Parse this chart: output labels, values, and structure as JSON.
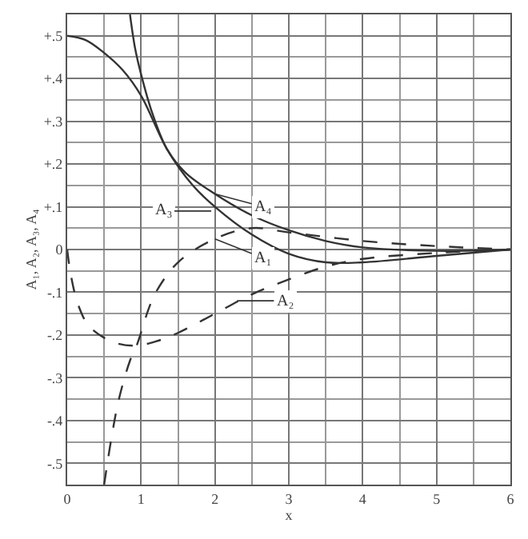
{
  "chart_data": {
    "type": "line",
    "xlabel": "x",
    "ylabel": "A₁, A₂, A₃, A₄",
    "xlim": [
      0,
      6
    ],
    "xticks": [
      0,
      1,
      2,
      3,
      4,
      5,
      6
    ],
    "ylim": [
      -0.55,
      0.55
    ],
    "yticks": [
      {
        "value": 0.5,
        "label": "+.5"
      },
      {
        "value": 0.4,
        "label": "+.4"
      },
      {
        "value": 0.3,
        "label": "+.3"
      },
      {
        "value": 0.2,
        "label": "+.2"
      },
      {
        "value": 0.1,
        "label": "+.1"
      },
      0,
      {
        "value": -0.1,
        "label": "-.1"
      },
      {
        "value": -0.2,
        "label": "-.2"
      },
      {
        "value": -0.3,
        "label": "-.3"
      },
      {
        "value": -0.4,
        "label": "-.4"
      },
      {
        "value": -0.5,
        "label": "-.5"
      }
    ],
    "grid": true,
    "series": [
      {
        "color": "#333333",
        "line_style": "solid",
        "x": [
          0.85,
          0.92,
          1.0,
          1.15,
          1.35,
          1.6,
          2.0,
          2.5,
          3.0,
          3.5,
          4.0,
          5.0,
          6.0
        ],
        "values": [
          0.55,
          0.47,
          0.41,
          0.32,
          0.235,
          0.18,
          0.13,
          0.08,
          0.045,
          0.02,
          0.005,
          -0.003,
          0
        ]
      },
      {
        "color": "#333333",
        "line_style": "solid",
        "x": [
          0,
          0.25,
          0.5,
          0.75,
          1.0,
          1.35,
          1.7,
          2.0,
          2.5,
          3.0,
          3.5,
          4.0,
          5.0,
          6.0
        ],
        "values": [
          0.5,
          0.49,
          0.46,
          0.42,
          0.36,
          0.235,
          0.15,
          0.1,
          0.035,
          -0.01,
          -0.03,
          -0.03,
          -0.015,
          0
        ]
      },
      {
        "color": "#333333",
        "line_style": "dashed",
        "x": [
          0.5,
          0.6,
          0.7,
          0.85,
          0.95,
          1.1,
          1.2,
          1.5,
          2.0,
          2.5,
          3.0,
          4.0,
          5.0,
          6.0
        ],
        "values": [
          -0.55,
          -0.44,
          -0.35,
          -0.26,
          -0.22,
          -0.14,
          -0.1,
          -0.03,
          0.025,
          0.05,
          0.04,
          0.02,
          0.008,
          0
        ]
      },
      {
        "color": "#333333",
        "line_style": "dashed",
        "x": [
          0,
          0.05,
          0.15,
          0.3,
          0.6,
          0.9,
          1.2,
          1.5,
          2.0,
          2.5,
          3.0,
          3.5,
          4.0,
          5.0,
          6.0
        ],
        "values": [
          0,
          -0.06,
          -0.13,
          -0.18,
          -0.215,
          -0.225,
          -0.215,
          -0.195,
          -0.15,
          -0.105,
          -0.07,
          -0.04,
          -0.022,
          -0.008,
          0
        ]
      }
    ],
    "annotations": [
      {
        "text": "A₄",
        "x": 2.0,
        "y": 0.13
      },
      {
        "text": "A₃",
        "x": 1.95,
        "y": 0.09
      },
      {
        "text": "A₁",
        "x": 2.0,
        "y": 0.025
      },
      {
        "text": "A₂",
        "x": 2.3,
        "y": -0.12
      }
    ]
  }
}
